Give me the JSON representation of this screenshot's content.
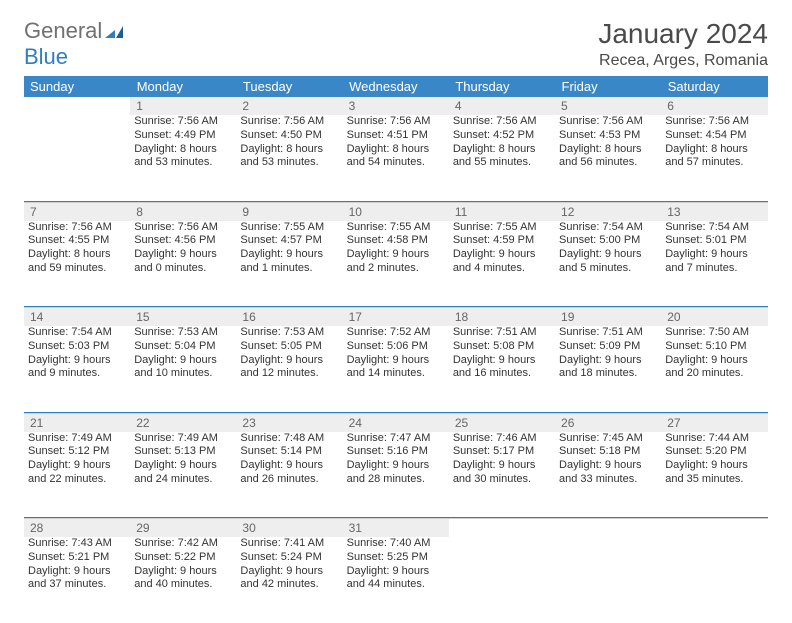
{
  "logo": {
    "word1": "General",
    "word2": "Blue"
  },
  "title": {
    "month": "January 2024",
    "location": "Recea, Arges, Romania"
  },
  "colors": {
    "header_bg": "#3a87c8",
    "header_fg": "#ffffff",
    "daynum_bg": "#eeeeee",
    "daynum_fg": "#666666",
    "sep": "#2f7ec2",
    "body_fg": "#333333",
    "logo_gray": "#707070",
    "logo_blue": "#2f7ec2"
  },
  "style": {
    "title_fontsize": 28,
    "loc_fontsize": 16,
    "th_fontsize": 13,
    "cell_fontsize": 11,
    "daynum_fontsize": 12
  },
  "weekdays": [
    "Sunday",
    "Monday",
    "Tuesday",
    "Wednesday",
    "Thursday",
    "Friday",
    "Saturday"
  ],
  "weeks": [
    {
      "nums": [
        "",
        "1",
        "2",
        "3",
        "4",
        "5",
        "6"
      ],
      "cells": [
        null,
        {
          "sunrise": "7:56 AM",
          "sunset": "4:49 PM",
          "day_h": 8,
          "day_m": 53
        },
        {
          "sunrise": "7:56 AM",
          "sunset": "4:50 PM",
          "day_h": 8,
          "day_m": 53
        },
        {
          "sunrise": "7:56 AM",
          "sunset": "4:51 PM",
          "day_h": 8,
          "day_m": 54
        },
        {
          "sunrise": "7:56 AM",
          "sunset": "4:52 PM",
          "day_h": 8,
          "day_m": 55
        },
        {
          "sunrise": "7:56 AM",
          "sunset": "4:53 PM",
          "day_h": 8,
          "day_m": 56
        },
        {
          "sunrise": "7:56 AM",
          "sunset": "4:54 PM",
          "day_h": 8,
          "day_m": 57
        }
      ]
    },
    {
      "nums": [
        "7",
        "8",
        "9",
        "10",
        "11",
        "12",
        "13"
      ],
      "cells": [
        {
          "sunrise": "7:56 AM",
          "sunset": "4:55 PM",
          "day_h": 8,
          "day_m": 59
        },
        {
          "sunrise": "7:56 AM",
          "sunset": "4:56 PM",
          "day_h": 9,
          "day_m": 0
        },
        {
          "sunrise": "7:55 AM",
          "sunset": "4:57 PM",
          "day_h": 9,
          "day_m": 1
        },
        {
          "sunrise": "7:55 AM",
          "sunset": "4:58 PM",
          "day_h": 9,
          "day_m": 2
        },
        {
          "sunrise": "7:55 AM",
          "sunset": "4:59 PM",
          "day_h": 9,
          "day_m": 4
        },
        {
          "sunrise": "7:54 AM",
          "sunset": "5:00 PM",
          "day_h": 9,
          "day_m": 5
        },
        {
          "sunrise": "7:54 AM",
          "sunset": "5:01 PM",
          "day_h": 9,
          "day_m": 7
        }
      ]
    },
    {
      "nums": [
        "14",
        "15",
        "16",
        "17",
        "18",
        "19",
        "20"
      ],
      "cells": [
        {
          "sunrise": "7:54 AM",
          "sunset": "5:03 PM",
          "day_h": 9,
          "day_m": 9
        },
        {
          "sunrise": "7:53 AM",
          "sunset": "5:04 PM",
          "day_h": 9,
          "day_m": 10
        },
        {
          "sunrise": "7:53 AM",
          "sunset": "5:05 PM",
          "day_h": 9,
          "day_m": 12
        },
        {
          "sunrise": "7:52 AM",
          "sunset": "5:06 PM",
          "day_h": 9,
          "day_m": 14
        },
        {
          "sunrise": "7:51 AM",
          "sunset": "5:08 PM",
          "day_h": 9,
          "day_m": 16
        },
        {
          "sunrise": "7:51 AM",
          "sunset": "5:09 PM",
          "day_h": 9,
          "day_m": 18
        },
        {
          "sunrise": "7:50 AM",
          "sunset": "5:10 PM",
          "day_h": 9,
          "day_m": 20
        }
      ]
    },
    {
      "nums": [
        "21",
        "22",
        "23",
        "24",
        "25",
        "26",
        "27"
      ],
      "cells": [
        {
          "sunrise": "7:49 AM",
          "sunset": "5:12 PM",
          "day_h": 9,
          "day_m": 22
        },
        {
          "sunrise": "7:49 AM",
          "sunset": "5:13 PM",
          "day_h": 9,
          "day_m": 24
        },
        {
          "sunrise": "7:48 AM",
          "sunset": "5:14 PM",
          "day_h": 9,
          "day_m": 26
        },
        {
          "sunrise": "7:47 AM",
          "sunset": "5:16 PM",
          "day_h": 9,
          "day_m": 28
        },
        {
          "sunrise": "7:46 AM",
          "sunset": "5:17 PM",
          "day_h": 9,
          "day_m": 30
        },
        {
          "sunrise": "7:45 AM",
          "sunset": "5:18 PM",
          "day_h": 9,
          "day_m": 33
        },
        {
          "sunrise": "7:44 AM",
          "sunset": "5:20 PM",
          "day_h": 9,
          "day_m": 35
        }
      ]
    },
    {
      "nums": [
        "28",
        "29",
        "30",
        "31",
        "",
        "",
        ""
      ],
      "cells": [
        {
          "sunrise": "7:43 AM",
          "sunset": "5:21 PM",
          "day_h": 9,
          "day_m": 37
        },
        {
          "sunrise": "7:42 AM",
          "sunset": "5:22 PM",
          "day_h": 9,
          "day_m": 40
        },
        {
          "sunrise": "7:41 AM",
          "sunset": "5:24 PM",
          "day_h": 9,
          "day_m": 42
        },
        {
          "sunrise": "7:40 AM",
          "sunset": "5:25 PM",
          "day_h": 9,
          "day_m": 44
        },
        null,
        null,
        null
      ]
    }
  ],
  "labels": {
    "sunrise": "Sunrise:",
    "sunset": "Sunset:",
    "daylight": "Daylight:",
    "hours": "hours",
    "and": "and",
    "minutes": "minutes."
  }
}
